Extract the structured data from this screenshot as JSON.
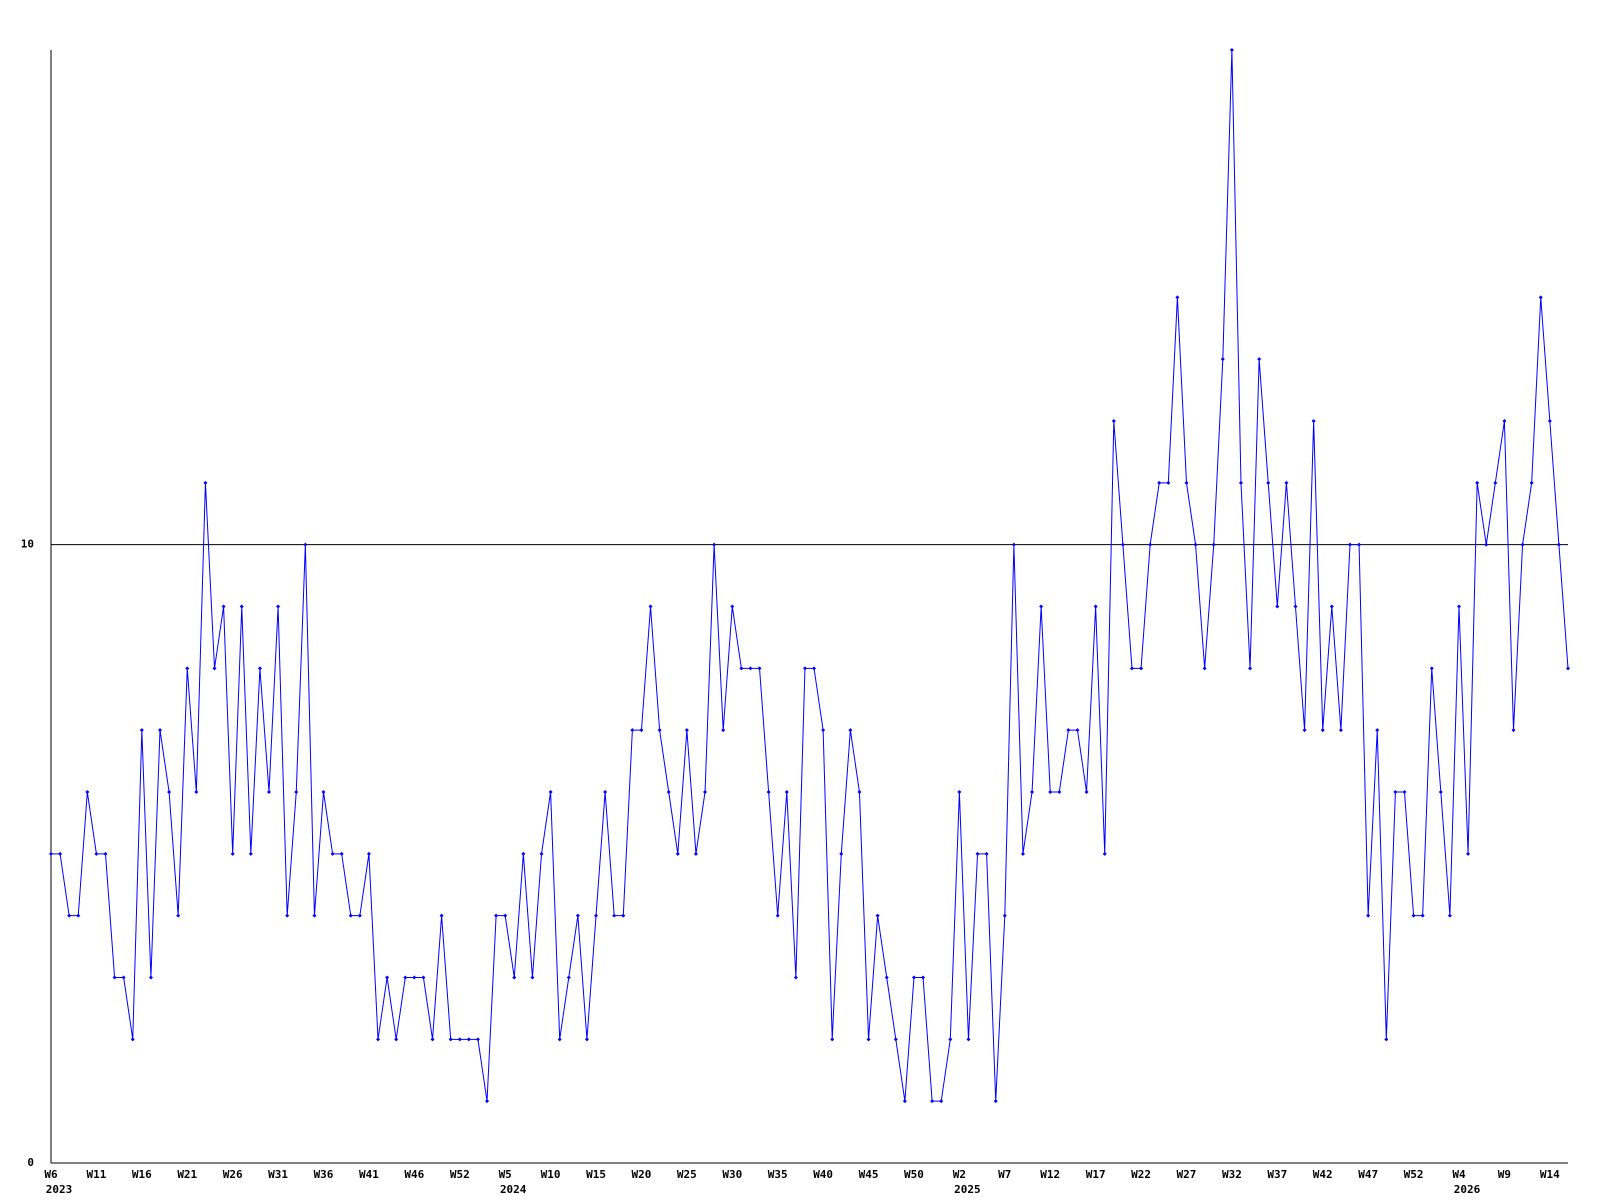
{
  "chart_data": {
    "type": "line",
    "categories": [
      "W6",
      null,
      null,
      null,
      null,
      "W11",
      null,
      null,
      null,
      null,
      "W16",
      null,
      null,
      null,
      null,
      "W21",
      null,
      null,
      null,
      null,
      "W26",
      null,
      null,
      null,
      null,
      "W31",
      null,
      null,
      null,
      null,
      "W36",
      null,
      null,
      null,
      null,
      "W41",
      null,
      null,
      null,
      null,
      "W46",
      null,
      null,
      null,
      null,
      "W52",
      null,
      null,
      null,
      null,
      "W5",
      null,
      null,
      null,
      null,
      "W10",
      null,
      null,
      null,
      null,
      "W15",
      null,
      null,
      null,
      null,
      "W20",
      null,
      null,
      null,
      null,
      "W25",
      null,
      null,
      null,
      null,
      "W30",
      null,
      null,
      null,
      null,
      "W35",
      null,
      null,
      null,
      null,
      "W40",
      null,
      null,
      null,
      null,
      "W45",
      null,
      null,
      null,
      null,
      "W50",
      null,
      null,
      null,
      null,
      "W2",
      null,
      null,
      null,
      null,
      "W7",
      null,
      null,
      null,
      null,
      "W12",
      null,
      null,
      null,
      null,
      "W17",
      null,
      null,
      null,
      null,
      "W22",
      null,
      null,
      null,
      null,
      "W27",
      null,
      null,
      null,
      null,
      "W32",
      null,
      null,
      null,
      null,
      "W37",
      null,
      null,
      null,
      null,
      "W42",
      null,
      null,
      null,
      null,
      "W47",
      null,
      null,
      null,
      null,
      "W52",
      null,
      null,
      null,
      null,
      "W4",
      null,
      null,
      null,
      null,
      "W9",
      null,
      null,
      null,
      null,
      "W14",
      null,
      null
    ],
    "year_labels": [
      "2023",
      null,
      null,
      null,
      null,
      null,
      null,
      null,
      null,
      null,
      null,
      null,
      null,
      null,
      null,
      null,
      null,
      null,
      null,
      null,
      null,
      null,
      null,
      null,
      null,
      null,
      null,
      null,
      null,
      null,
      null,
      null,
      null,
      null,
      null,
      null,
      null,
      null,
      null,
      null,
      null,
      null,
      null,
      null,
      null,
      null,
      null,
      null,
      null,
      null,
      "2024",
      null,
      null,
      null,
      null,
      null,
      null,
      null,
      null,
      null,
      null,
      null,
      null,
      null,
      null,
      null,
      null,
      null,
      null,
      null,
      null,
      null,
      null,
      null,
      null,
      null,
      null,
      null,
      null,
      null,
      null,
      null,
      null,
      null,
      null,
      null,
      null,
      null,
      null,
      null,
      null,
      null,
      null,
      null,
      null,
      null,
      null,
      null,
      null,
      null,
      "2025",
      null,
      null,
      null,
      null,
      null,
      null,
      null,
      null,
      null,
      null,
      null,
      null,
      null,
      null,
      null,
      null,
      null,
      null,
      null,
      null,
      null,
      null,
      null,
      null,
      null,
      null,
      null,
      null,
      null,
      null,
      null,
      null,
      null,
      null,
      null,
      null,
      null,
      null,
      null,
      null,
      null,
      null,
      null,
      null,
      null,
      null,
      null,
      null,
      null,
      null,
      null,
      null,
      null,
      null,
      "2026",
      null,
      null,
      null,
      null,
      null,
      null,
      null,
      null,
      null,
      null,
      null,
      null
    ],
    "series": [
      {
        "color": "#0000ff",
        "values": [
          5,
          5,
          4,
          4,
          6,
          5,
          5,
          3,
          3,
          2,
          7,
          3,
          7,
          6,
          4,
          8,
          6,
          11,
          8,
          9,
          5,
          9,
          5,
          8,
          6,
          9,
          4,
          6,
          10,
          4,
          6,
          5,
          5,
          4,
          4,
          5,
          2,
          3,
          2,
          3,
          3,
          3,
          2,
          4,
          2,
          2,
          2,
          2,
          1,
          4,
          4,
          3,
          5,
          3,
          5,
          6,
          2,
          3,
          4,
          2,
          4,
          6,
          4,
          4,
          7,
          7,
          9,
          7,
          6,
          5,
          7,
          5,
          6,
          10,
          7,
          9,
          8,
          8,
          8,
          6,
          4,
          6,
          3,
          8,
          8,
          7,
          2,
          5,
          7,
          6,
          2,
          4,
          3,
          2,
          1,
          3,
          3,
          1,
          1,
          2,
          6,
          2,
          5,
          5,
          1,
          4,
          10,
          5,
          6,
          9,
          6,
          6,
          7,
          7,
          6,
          9,
          5,
          12,
          10,
          8,
          8,
          10,
          11,
          11,
          14,
          11,
          10,
          8,
          10,
          13,
          18,
          11,
          8,
          13,
          11,
          9,
          11,
          9,
          7,
          12,
          7,
          9,
          7,
          10,
          10,
          4,
          7,
          2,
          6,
          6,
          4,
          4,
          8,
          6,
          4,
          9,
          5,
          11,
          10,
          11,
          12,
          7,
          10,
          11,
          14,
          12,
          10,
          8
        ]
      }
    ],
    "ylim": [
      0,
      18
    ],
    "yticks": [
      0,
      10
    ],
    "grid_color": "#000000"
  }
}
